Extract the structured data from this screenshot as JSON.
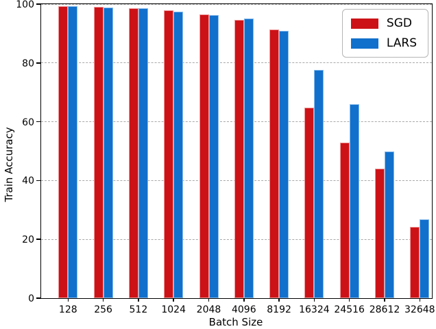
{
  "chart_data": {
    "type": "bar",
    "title": "",
    "xlabel": "Batch Size",
    "ylabel": "Train Accuracy",
    "categories": [
      "128",
      "256",
      "512",
      "1024",
      "2048",
      "4096",
      "8192",
      "16324",
      "24516",
      "28612",
      "32648"
    ],
    "series": [
      {
        "name": "SGD",
        "color": "#cc1217",
        "values": [
          99.2,
          99.0,
          98.5,
          98.0,
          96.5,
          94.6,
          91.4,
          64.7,
          52.9,
          44.0,
          24.3
        ]
      },
      {
        "name": "LARS",
        "color": "#1170cc",
        "values": [
          99.4,
          98.8,
          98.6,
          97.5,
          96.2,
          95.0,
          91.0,
          77.7,
          65.9,
          49.8,
          26.9
        ]
      }
    ],
    "ylim": [
      0,
      100
    ],
    "yticks": [
      0,
      20,
      40,
      60,
      80,
      100
    ],
    "grid": "dashed-horizontal",
    "legend_position": "upper-right"
  }
}
